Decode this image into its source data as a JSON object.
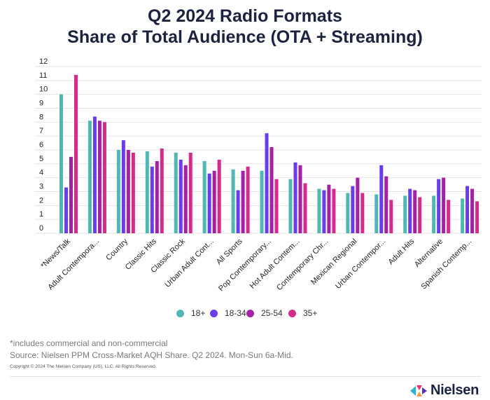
{
  "title_line1": "Q2 2024 Radio Formats",
  "title_line2": "Share of Total Audience (OTA + Streaming)",
  "footnote": "*includes commercial and non-commercial",
  "source": "Source: Nielsen PPM Cross-Market AQH Share. Q2 2024. Mon-Sun 6a-Mid.",
  "copyright": "Copyright © 2024 The Nielsen Company (US), LLC. All Rights Reserved.",
  "logo_text": "Nielsen",
  "colors": {
    "s18plus": "#4fb8b2",
    "s18_34": "#6a3de8",
    "s25_54": "#a322a3",
    "s35plus": "#d42c8c",
    "gridline": "#e4e4e4",
    "logo_teal": "#2cb5c9",
    "logo_pink": "#e8336f",
    "logo_purple": "#5a2ec5"
  },
  "chart_data": {
    "type": "bar",
    "title": "Q2 2024 Radio Formats Share of Total Audience (OTA + Streaming)",
    "categories": [
      "*News/Talk",
      "Adult Contempora...",
      "Country",
      "Classic Hits",
      "Classic Rock",
      "Urban Adult Cont...",
      "All Sports",
      "Pop Contemporary...",
      "Hot Adult Contem...",
      "Contemporary Chr...",
      "Mexican Regional",
      "Urban Contempor...",
      "Adult Hits",
      "Alternative",
      "Spanish Contemp..."
    ],
    "series": [
      {
        "name": "18+",
        "color": "#4fb8b2",
        "values": [
          10.0,
          8.1,
          6.0,
          5.9,
          5.8,
          5.2,
          4.6,
          4.5,
          3.9,
          3.2,
          2.9,
          2.8,
          2.7,
          2.7,
          2.5
        ]
      },
      {
        "name": "18-34",
        "color": "#6a3de8",
        "values": [
          3.3,
          8.4,
          6.7,
          4.8,
          5.3,
          4.3,
          3.1,
          7.2,
          5.1,
          3.1,
          3.4,
          4.9,
          3.2,
          3.9,
          3.4
        ]
      },
      {
        "name": "25-54",
        "color": "#a322a3",
        "values": [
          5.5,
          8.1,
          6.0,
          5.2,
          4.9,
          4.5,
          4.5,
          6.2,
          4.9,
          3.5,
          4.0,
          4.1,
          3.1,
          4.0,
          3.2
        ]
      },
      {
        "name": "35+",
        "color": "#d42c8c",
        "values": [
          11.4,
          8.0,
          5.8,
          6.1,
          5.8,
          5.3,
          4.8,
          3.9,
          3.6,
          3.2,
          2.9,
          2.4,
          2.6,
          2.4,
          2.3
        ]
      }
    ],
    "yticks": [
      0,
      1,
      2,
      3,
      4,
      5,
      6,
      7,
      8,
      9,
      10,
      11,
      12
    ],
    "ylim": [
      0,
      12
    ],
    "xlabel": "",
    "ylabel": "",
    "grid": true,
    "legend": "bottom-center"
  }
}
